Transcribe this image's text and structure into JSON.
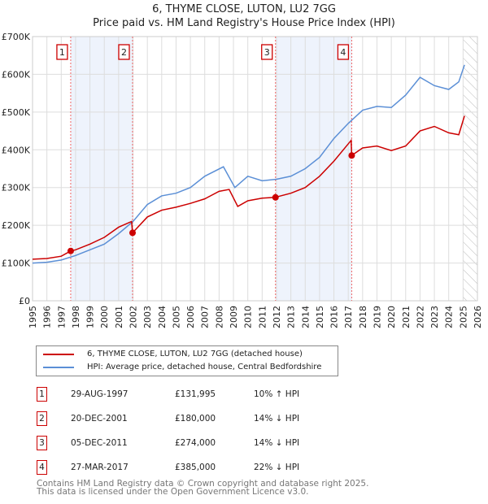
{
  "chart_data": {
    "type": "line",
    "title": "6, THYME CLOSE, LUTON, LU2 7GG",
    "subtitle": "Price paid vs. HM Land Registry's House Price Index (HPI)",
    "xlim": [
      1995,
      2026
    ],
    "ylim": [
      0,
      700000
    ],
    "y_ticks": [
      {
        "v": 0,
        "label": "£0"
      },
      {
        "v": 100000,
        "label": "£100K"
      },
      {
        "v": 200000,
        "label": "£200K"
      },
      {
        "v": 300000,
        "label": "£300K"
      },
      {
        "v": 400000,
        "label": "£400K"
      },
      {
        "v": 500000,
        "label": "£500K"
      },
      {
        "v": 600000,
        "label": "£600K"
      },
      {
        "v": 700000,
        "label": "£700K"
      }
    ],
    "x_ticks": [
      "1995",
      "1996",
      "1997",
      "1998",
      "1999",
      "2000",
      "2001",
      "2002",
      "2003",
      "2004",
      "2005",
      "2006",
      "2007",
      "2008",
      "2009",
      "2010",
      "2011",
      "2012",
      "2013",
      "2014",
      "2015",
      "2016",
      "2017",
      "2018",
      "2019",
      "2020",
      "2021",
      "2022",
      "2023",
      "2024",
      "2025",
      "2026"
    ],
    "grid": true,
    "series": [
      {
        "name": "6, THYME CLOSE, LUTON, LU2 7GG (detached house)",
        "color": "#cc0000",
        "x": [
          1995,
          1996,
          1997,
          1997.66,
          1998,
          1999,
          2000,
          2001,
          2001.9,
          2001.97,
          2003,
          2004,
          2005,
          2006,
          2007,
          2008,
          2008.7,
          2009.3,
          2010,
          2011,
          2011.93,
          2012,
          2013,
          2014,
          2015,
          2016,
          2017.2,
          2017.24,
          2018,
          2019,
          2020,
          2021,
          2022,
          2023,
          2024,
          2024.7,
          2025.1
        ],
        "y": [
          110000,
          112000,
          118000,
          131995,
          135000,
          150000,
          168000,
          195000,
          210000,
          180000,
          222000,
          240000,
          248000,
          258000,
          270000,
          290000,
          295000,
          250000,
          265000,
          272000,
          274000,
          275000,
          285000,
          300000,
          330000,
          370000,
          425000,
          385000,
          405000,
          410000,
          398000,
          410000,
          450000,
          462000,
          445000,
          440000,
          490000
        ]
      },
      {
        "name": "HPI: Average price, detached house, Central Bedfordshire",
        "color": "#5b8fd6",
        "x": [
          1995,
          1996,
          1997,
          1998,
          1999,
          2000,
          2001,
          2002,
          2003,
          2004,
          2005,
          2006,
          2007,
          2008.3,
          2009.1,
          2010,
          2011,
          2012,
          2013,
          2014,
          2015,
          2016,
          2017,
          2018,
          2019,
          2020,
          2021,
          2022,
          2023,
          2024,
          2024.7,
          2025.1
        ],
        "y": [
          100000,
          102000,
          108000,
          120000,
          135000,
          150000,
          178000,
          210000,
          255000,
          278000,
          285000,
          300000,
          330000,
          355000,
          300000,
          330000,
          318000,
          322000,
          330000,
          350000,
          380000,
          430000,
          470000,
          505000,
          515000,
          512000,
          545000,
          592000,
          570000,
          560000,
          580000,
          625000
        ]
      }
    ],
    "sales": [
      {
        "id": "1",
        "x": 1997.66,
        "date": "29-AUG-1997",
        "price": "£131,995",
        "hpi": "10% ↑ HPI",
        "value": 131995
      },
      {
        "id": "2",
        "x": 2001.97,
        "date": "20-DEC-2001",
        "price": "£180,000",
        "hpi": "14% ↓ HPI",
        "value": 180000
      },
      {
        "id": "3",
        "x": 2011.93,
        "date": "05-DEC-2011",
        "price": "£274,000",
        "hpi": "14% ↓ HPI",
        "value": 274000
      },
      {
        "id": "4",
        "x": 2017.24,
        "date": "27-MAR-2017",
        "price": "£385,000",
        "hpi": "22% ↓ HPI",
        "value": 385000
      }
    ],
    "shaded_ranges": [
      [
        1997.66,
        2001.97
      ],
      [
        2011.93,
        2017.24
      ]
    ],
    "hatched_from": 2025.0
  },
  "footer": {
    "line1": "Contains HM Land Registry data © Crown copyright and database right 2025.",
    "line2": "This data is licensed under the Open Government Licence v3.0."
  }
}
